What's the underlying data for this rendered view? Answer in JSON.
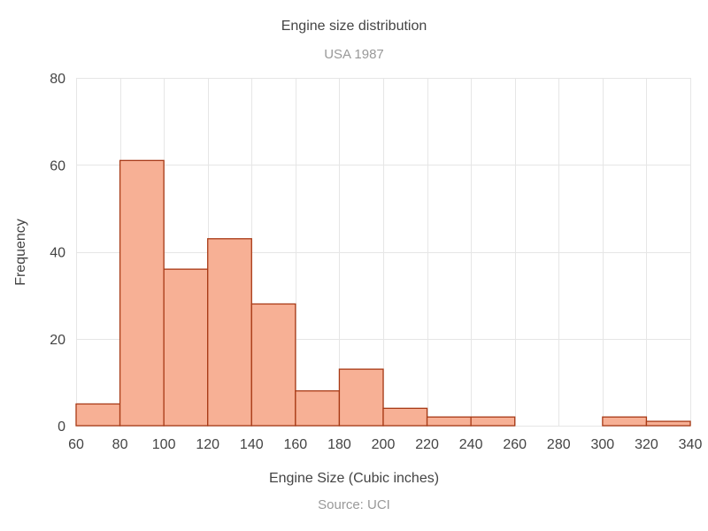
{
  "chart_data": {
    "type": "bar",
    "title": "Engine size distribution",
    "subtitle": "USA 1987",
    "xlabel": "Engine Size (Cubic inches)",
    "ylabel": "Frequency",
    "source": "Source: UCI",
    "xlim": [
      60,
      340
    ],
    "ylim": [
      0,
      80
    ],
    "x_ticks": [
      60,
      80,
      100,
      120,
      140,
      160,
      180,
      200,
      220,
      240,
      260,
      280,
      300,
      320,
      340
    ],
    "y_ticks": [
      0,
      20,
      40,
      60,
      80
    ],
    "grid": true,
    "legend": "none",
    "bins": [
      {
        "start": 60,
        "end": 80,
        "value": 5
      },
      {
        "start": 80,
        "end": 100,
        "value": 61
      },
      {
        "start": 100,
        "end": 120,
        "value": 36
      },
      {
        "start": 120,
        "end": 140,
        "value": 43
      },
      {
        "start": 140,
        "end": 160,
        "value": 28
      },
      {
        "start": 160,
        "end": 180,
        "value": 8
      },
      {
        "start": 180,
        "end": 200,
        "value": 13
      },
      {
        "start": 200,
        "end": 220,
        "value": 4
      },
      {
        "start": 220,
        "end": 240,
        "value": 2
      },
      {
        "start": 240,
        "end": 260,
        "value": 2
      },
      {
        "start": 260,
        "end": 280,
        "value": 0
      },
      {
        "start": 280,
        "end": 300,
        "value": 0
      },
      {
        "start": 300,
        "end": 320,
        "value": 2
      },
      {
        "start": 320,
        "end": 340,
        "value": 1
      }
    ],
    "colors": {
      "bar_fill": "#f7b095",
      "bar_stroke": "#a83a16"
    }
  }
}
